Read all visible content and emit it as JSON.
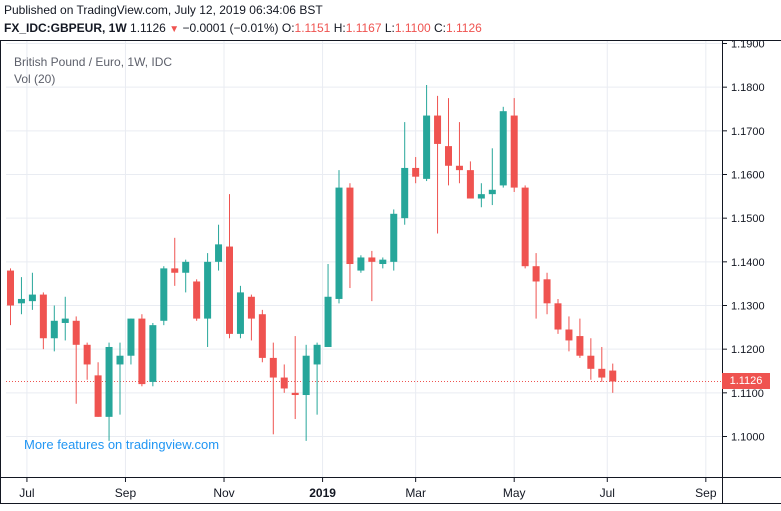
{
  "header": {
    "published": "Published on TradingView.com, July 12, 2019 06:34:06 BST",
    "symbol": "FX_IDC:GBPEUR, 1W",
    "last": "1.1126",
    "change": "−0.0001 (−0.01%)",
    "o_label": "O:",
    "o_value": "1.1151",
    "h_label": "H:",
    "h_value": "1.1167",
    "l_label": "L:",
    "l_value": "1.1100",
    "c_label": "C:",
    "c_value": "1.1126"
  },
  "legend": {
    "title": "British Pound / Euro, 1W, IDC",
    "volume": "Vol (20)"
  },
  "promo_text": "More features on tradingview.com",
  "price_tag": "1.1126",
  "colors": {
    "up": "#26a69a",
    "down": "#ef5350",
    "grid": "#e9ecf2",
    "axis": "#131722",
    "last_line": "#ef5350"
  },
  "chart_data": {
    "type": "candlestick",
    "ylim": [
      1.092,
      1.192
    ],
    "y_ticks": [
      "1.1900",
      "1.1800",
      "1.1700",
      "1.1600",
      "1.1500",
      "1.1400",
      "1.1300",
      "1.1200",
      "1.1100",
      "1.1000"
    ],
    "x_ticks": [
      {
        "label": "Jul",
        "index": 1.5
      },
      {
        "label": "Sep",
        "index": 10.5
      },
      {
        "label": "Nov",
        "index": 19.5
      },
      {
        "label": "2019",
        "index": 28.5
      },
      {
        "label": "Mar",
        "index": 37
      },
      {
        "label": "May",
        "index": 46
      },
      {
        "label": "Jul",
        "index": 54.5
      },
      {
        "label": "Sep",
        "index": 63.5
      }
    ],
    "last_price": 1.1126,
    "candles": [
      {
        "o": 1.138,
        "h": 1.1385,
        "l": 1.1255,
        "c": 1.13
      },
      {
        "o": 1.1305,
        "h": 1.1365,
        "l": 1.128,
        "c": 1.1315
      },
      {
        "o": 1.131,
        "h": 1.1375,
        "l": 1.129,
        "c": 1.1325
      },
      {
        "o": 1.1325,
        "h": 1.133,
        "l": 1.12,
        "c": 1.1225
      },
      {
        "o": 1.1225,
        "h": 1.13,
        "l": 1.1195,
        "c": 1.1265
      },
      {
        "o": 1.126,
        "h": 1.132,
        "l": 1.122,
        "c": 1.127
      },
      {
        "o": 1.1265,
        "h": 1.1275,
        "l": 1.1075,
        "c": 1.121
      },
      {
        "o": 1.121,
        "h": 1.1215,
        "l": 1.113,
        "c": 1.1165
      },
      {
        "o": 1.114,
        "h": 1.117,
        "l": 1.1045,
        "c": 1.1045
      },
      {
        "o": 1.1045,
        "h": 1.1215,
        "l": 1.099,
        "c": 1.1205
      },
      {
        "o": 1.1165,
        "h": 1.1215,
        "l": 1.105,
        "c": 1.1185
      },
      {
        "o": 1.1185,
        "h": 1.127,
        "l": 1.1165,
        "c": 1.127
      },
      {
        "o": 1.127,
        "h": 1.128,
        "l": 1.1115,
        "c": 1.112
      },
      {
        "o": 1.1125,
        "h": 1.126,
        "l": 1.1115,
        "c": 1.1255
      },
      {
        "o": 1.1265,
        "h": 1.139,
        "l": 1.1255,
        "c": 1.1385
      },
      {
        "o": 1.1385,
        "h": 1.1455,
        "l": 1.1345,
        "c": 1.1375
      },
      {
        "o": 1.1375,
        "h": 1.1405,
        "l": 1.133,
        "c": 1.14
      },
      {
        "o": 1.1355,
        "h": 1.136,
        "l": 1.1265,
        "c": 1.127
      },
      {
        "o": 1.127,
        "h": 1.142,
        "l": 1.1205,
        "c": 1.14
      },
      {
        "o": 1.14,
        "h": 1.1485,
        "l": 1.138,
        "c": 1.144
      },
      {
        "o": 1.1435,
        "h": 1.1555,
        "l": 1.1225,
        "c": 1.1235
      },
      {
        "o": 1.1235,
        "h": 1.1345,
        "l": 1.1225,
        "c": 1.133
      },
      {
        "o": 1.132,
        "h": 1.1325,
        "l": 1.122,
        "c": 1.127
      },
      {
        "o": 1.128,
        "h": 1.129,
        "l": 1.117,
        "c": 1.118
      },
      {
        "o": 1.118,
        "h": 1.1215,
        "l": 1.1005,
        "c": 1.1135
      },
      {
        "o": 1.1135,
        "h": 1.1165,
        "l": 1.11,
        "c": 1.111
      },
      {
        "o": 1.11,
        "h": 1.123,
        "l": 1.104,
        "c": 1.1095
      },
      {
        "o": 1.1095,
        "h": 1.121,
        "l": 1.099,
        "c": 1.1185
      },
      {
        "o": 1.1165,
        "h": 1.1215,
        "l": 1.105,
        "c": 1.121
      },
      {
        "o": 1.1205,
        "h": 1.1395,
        "l": 1.1205,
        "c": 1.132
      },
      {
        "o": 1.1315,
        "h": 1.161,
        "l": 1.1305,
        "c": 1.157
      },
      {
        "o": 1.157,
        "h": 1.158,
        "l": 1.134,
        "c": 1.1395
      },
      {
        "o": 1.138,
        "h": 1.1415,
        "l": 1.1375,
        "c": 1.141
      },
      {
        "o": 1.141,
        "h": 1.1425,
        "l": 1.131,
        "c": 1.14
      },
      {
        "o": 1.1395,
        "h": 1.141,
        "l": 1.1385,
        "c": 1.1405
      },
      {
        "o": 1.14,
        "h": 1.152,
        "l": 1.138,
        "c": 1.151
      },
      {
        "o": 1.15,
        "h": 1.172,
        "l": 1.1485,
        "c": 1.1615
      },
      {
        "o": 1.1615,
        "h": 1.164,
        "l": 1.158,
        "c": 1.1595
      },
      {
        "o": 1.159,
        "h": 1.1805,
        "l": 1.1585,
        "c": 1.1735
      },
      {
        "o": 1.1735,
        "h": 1.178,
        "l": 1.1465,
        "c": 1.167
      },
      {
        "o": 1.1665,
        "h": 1.1775,
        "l": 1.1575,
        "c": 1.162
      },
      {
        "o": 1.162,
        "h": 1.172,
        "l": 1.158,
        "c": 1.161
      },
      {
        "o": 1.161,
        "h": 1.163,
        "l": 1.1545,
        "c": 1.1545
      },
      {
        "o": 1.1545,
        "h": 1.158,
        "l": 1.1525,
        "c": 1.1555
      },
      {
        "o": 1.1555,
        "h": 1.166,
        "l": 1.153,
        "c": 1.1565
      },
      {
        "o": 1.1575,
        "h": 1.1755,
        "l": 1.157,
        "c": 1.1745
      },
      {
        "o": 1.1735,
        "h": 1.1775,
        "l": 1.156,
        "c": 1.157
      },
      {
        "o": 1.157,
        "h": 1.1575,
        "l": 1.1385,
        "c": 1.139
      },
      {
        "o": 1.139,
        "h": 1.142,
        "l": 1.127,
        "c": 1.1355
      },
      {
        "o": 1.136,
        "h": 1.1375,
        "l": 1.128,
        "c": 1.1305
      },
      {
        "o": 1.1305,
        "h": 1.1315,
        "l": 1.1235,
        "c": 1.1245
      },
      {
        "o": 1.1245,
        "h": 1.1275,
        "l": 1.1195,
        "c": 1.122
      },
      {
        "o": 1.123,
        "h": 1.127,
        "l": 1.118,
        "c": 1.1185
      },
      {
        "o": 1.1185,
        "h": 1.1225,
        "l": 1.113,
        "c": 1.1155
      },
      {
        "o": 1.1155,
        "h": 1.1205,
        "l": 1.1125,
        "c": 1.1135
      },
      {
        "o": 1.1151,
        "h": 1.1167,
        "l": 1.11,
        "c": 1.1126
      }
    ]
  }
}
